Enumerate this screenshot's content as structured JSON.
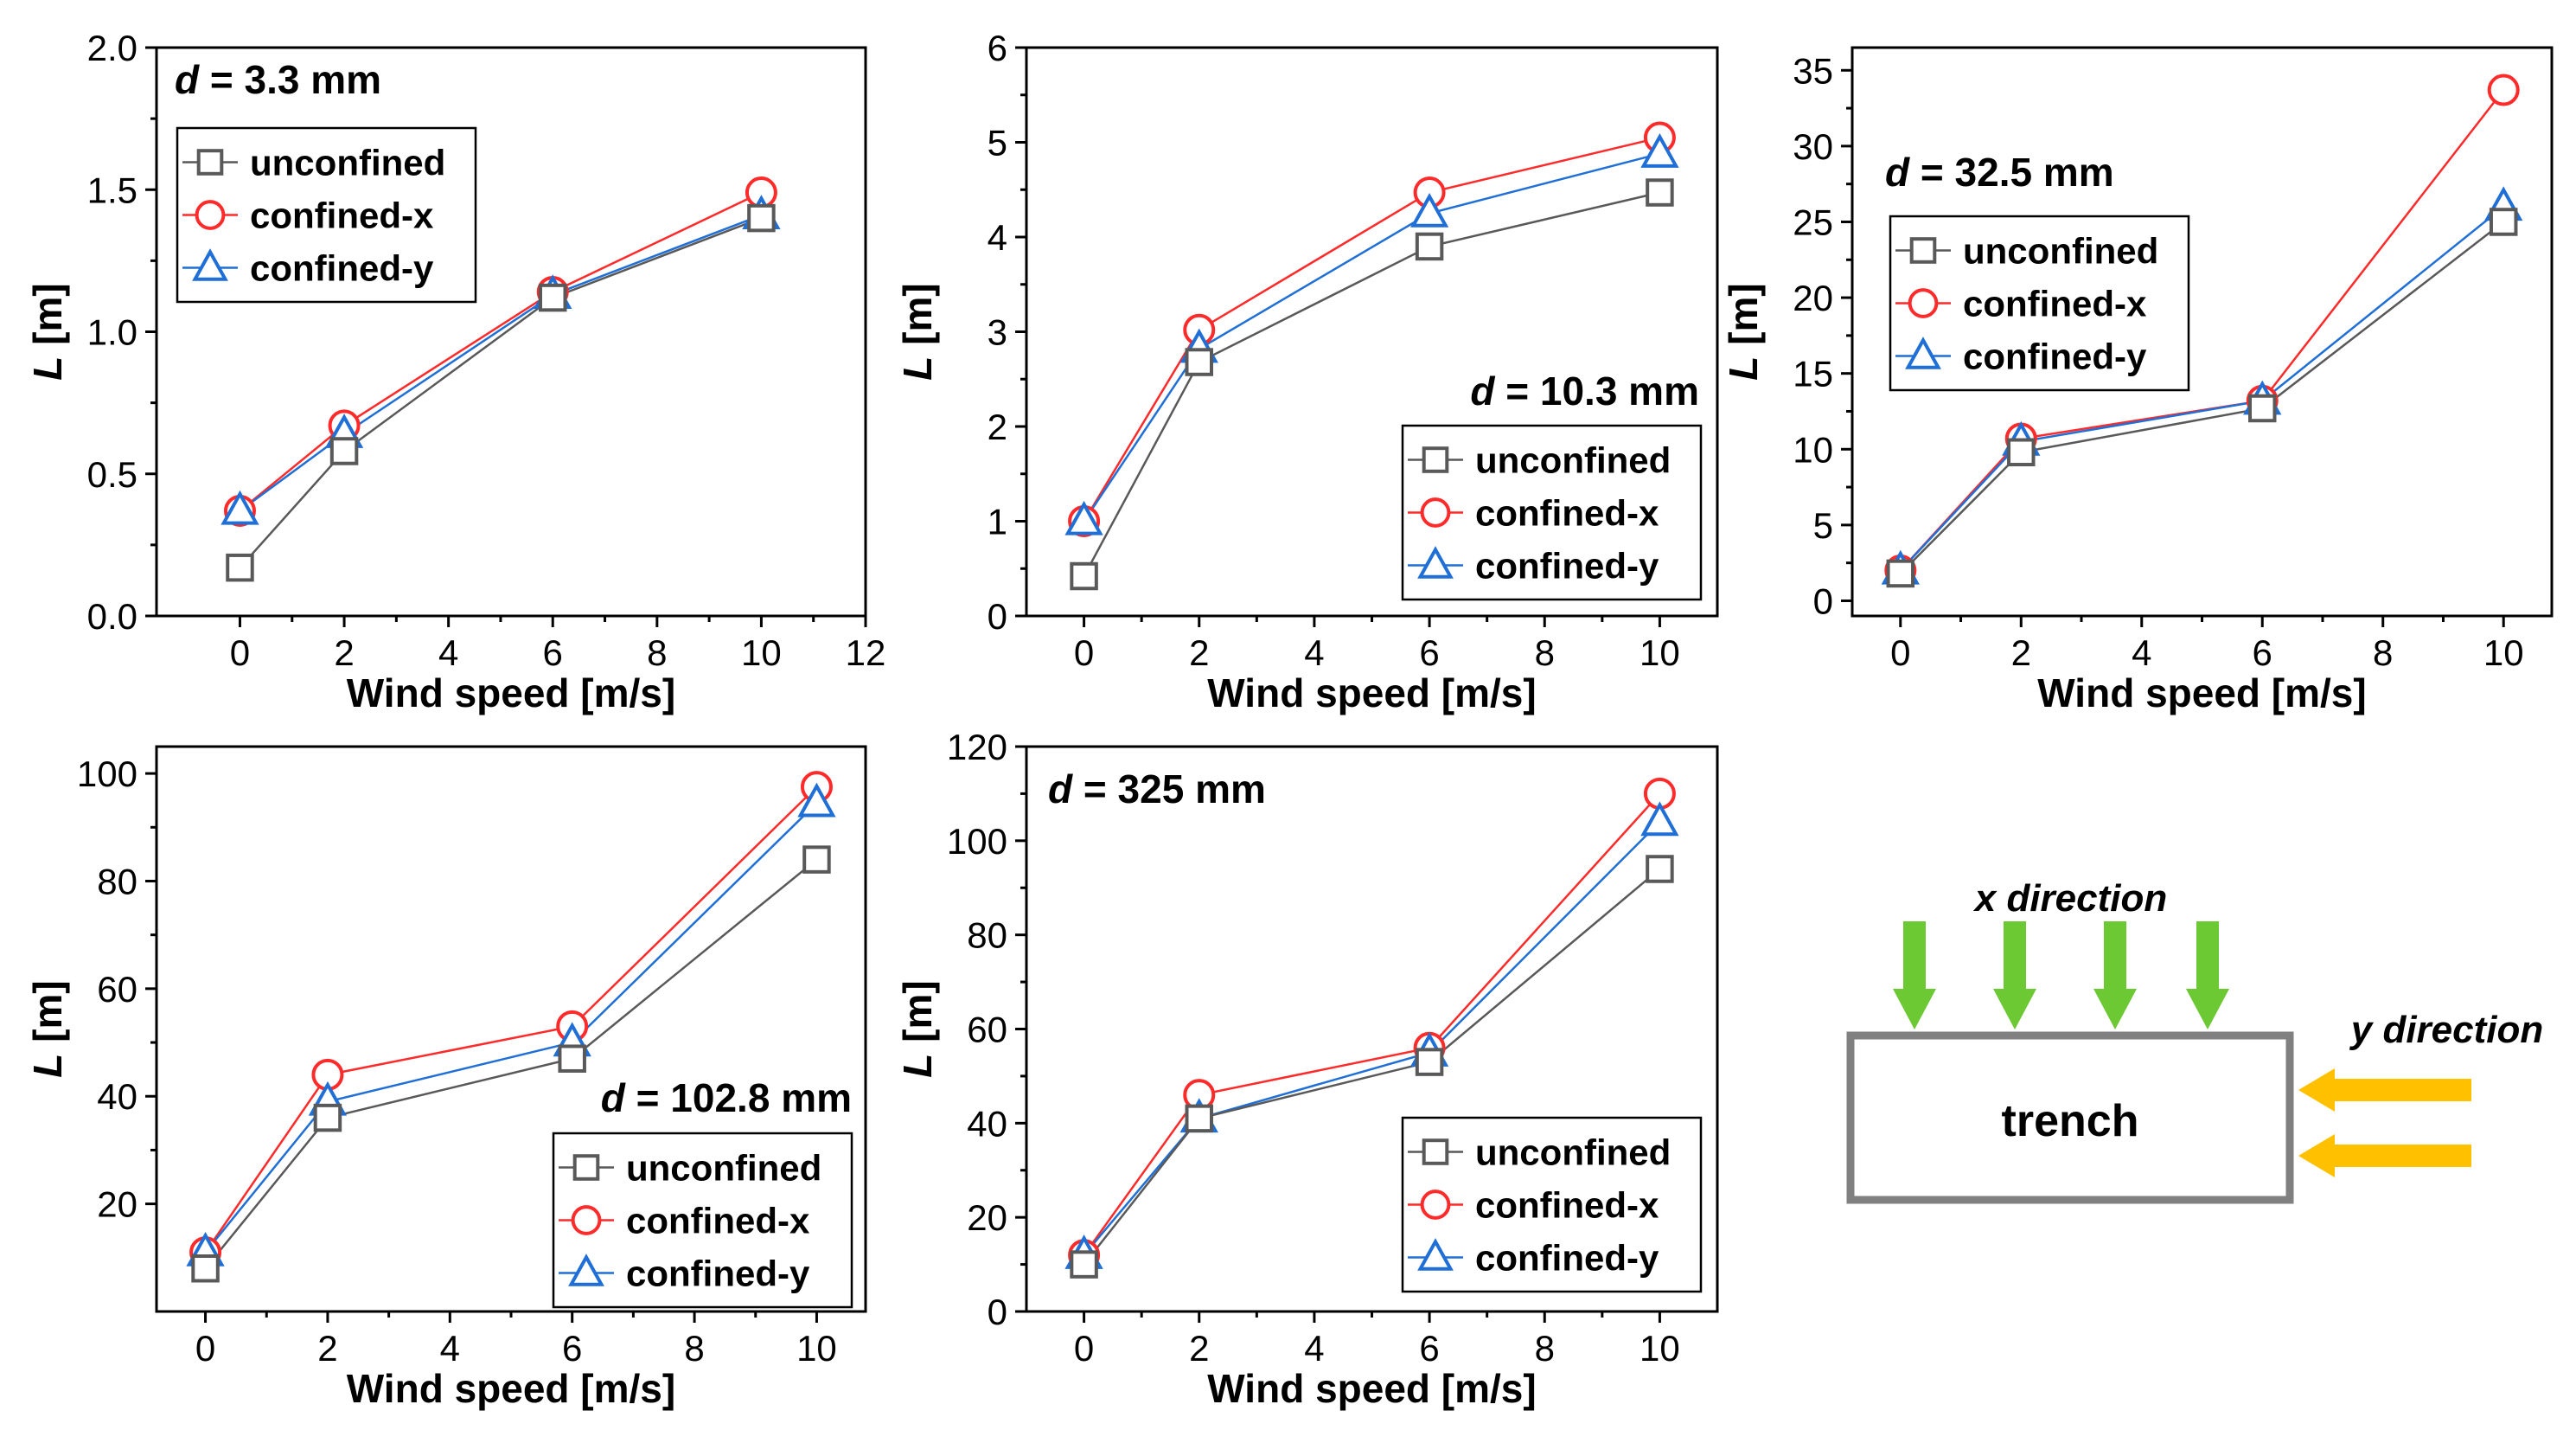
{
  "chart_data": [
    {
      "type": "line",
      "annotation_prefix": "d",
      "annotation_value": " = 3.3 mm",
      "xlabel": "Wind speed [m/s]",
      "ylabel_var": "L",
      "ylabel_unit": " [m]",
      "x": [
        0,
        2,
        6,
        10
      ],
      "xlim": [
        -1.6,
        12
      ],
      "ylim": [
        0,
        2.0
      ],
      "xticks": [
        0,
        2,
        4,
        6,
        8,
        10,
        12
      ],
      "xtick_labels": [
        "0",
        "2",
        "4",
        "6",
        "8",
        "10",
        "12"
      ],
      "yticks": [
        0,
        0.5,
        1.0,
        1.5,
        2.0
      ],
      "ytick_labels": [
        "0.0",
        "0.5",
        "1.0",
        "1.5",
        "2.0"
      ],
      "legend_position": "upper-left",
      "series": [
        {
          "name": "unconfined",
          "marker": "square",
          "color": "#595959",
          "values": [
            0.17,
            0.58,
            1.12,
            1.4
          ]
        },
        {
          "name": "confined-x",
          "marker": "circle",
          "color": "#FF2A2A",
          "values": [
            0.37,
            0.67,
            1.14,
            1.49
          ]
        },
        {
          "name": "confined-y",
          "marker": "triangle",
          "color": "#1F6FD6",
          "values": [
            0.37,
            0.64,
            1.13,
            1.41
          ]
        }
      ]
    },
    {
      "type": "line",
      "annotation_prefix": "d",
      "annotation_value": " = 10.3 mm",
      "xlabel": "Wind speed [m/s]",
      "ylabel_var": "L",
      "ylabel_unit": " [m]",
      "x": [
        0,
        2,
        6,
        10
      ],
      "xlim": [
        -1.0,
        11.0
      ],
      "ylim": [
        0,
        6
      ],
      "xticks": [
        0,
        2,
        4,
        6,
        8,
        10
      ],
      "xtick_labels": [
        "0",
        "2",
        "4",
        "6",
        "8",
        "10"
      ],
      "yticks": [
        0,
        1,
        2,
        3,
        4,
        5,
        6
      ],
      "ytick_labels": [
        "0",
        "1",
        "2",
        "3",
        "4",
        "5",
        "6"
      ],
      "legend_position": "lower-right",
      "series": [
        {
          "name": "unconfined",
          "marker": "square",
          "color": "#595959",
          "values": [
            0.42,
            2.68,
            3.9,
            4.47
          ]
        },
        {
          "name": "confined-x",
          "marker": "circle",
          "color": "#FF2A2A",
          "values": [
            1.0,
            3.02,
            4.47,
            5.05
          ]
        },
        {
          "name": "confined-y",
          "marker": "triangle",
          "color": "#1F6FD6",
          "values": [
            1.0,
            2.82,
            4.25,
            4.88
          ]
        }
      ]
    },
    {
      "type": "line",
      "annotation_prefix": "d",
      "annotation_value": " = 32.5 mm",
      "xlabel": "Wind speed [m/s]",
      "ylabel_var": "L",
      "ylabel_unit": " [m]",
      "x": [
        0,
        2,
        6,
        10
      ],
      "xlim": [
        -0.8,
        10.8
      ],
      "ylim": [
        -1,
        36.5
      ],
      "xticks": [
        0,
        2,
        4,
        6,
        8,
        10
      ],
      "xtick_labels": [
        "0",
        "2",
        "4",
        "6",
        "8",
        "10"
      ],
      "yticks": [
        0,
        5,
        10,
        15,
        20,
        25,
        30,
        35
      ],
      "ytick_labels": [
        "0",
        "5",
        "10",
        "15",
        "20",
        "25",
        "30",
        "35"
      ],
      "legend_position": "upper-left",
      "series": [
        {
          "name": "unconfined",
          "marker": "square",
          "color": "#595959",
          "values": [
            1.8,
            9.8,
            12.7,
            25.0
          ]
        },
        {
          "name": "confined-x",
          "marker": "circle",
          "color": "#FF2A2A",
          "values": [
            2.0,
            10.7,
            13.2,
            33.7
          ]
        },
        {
          "name": "confined-y",
          "marker": "triangle",
          "color": "#1F6FD6",
          "values": [
            2.0,
            10.5,
            13.2,
            26.0
          ]
        }
      ]
    },
    {
      "type": "line",
      "annotation_prefix": "d",
      "annotation_value": " = 102.8 mm",
      "xlabel": "Wind speed [m/s]",
      "ylabel_var": "L",
      "ylabel_unit": " [m]",
      "x": [
        0,
        2,
        6,
        10
      ],
      "xlim": [
        -0.8,
        10.8
      ],
      "ylim": [
        0,
        105
      ],
      "xticks": [
        0,
        2,
        4,
        6,
        8,
        10
      ],
      "xtick_labels": [
        "0",
        "2",
        "4",
        "6",
        "8",
        "10"
      ],
      "yticks": [
        20,
        40,
        60,
        80,
        100
      ],
      "ytick_labels": [
        "20",
        "40",
        "60",
        "80",
        "100"
      ],
      "legend_position": "lower-right",
      "series": [
        {
          "name": "unconfined",
          "marker": "square",
          "color": "#595959",
          "values": [
            8.0,
            36.0,
            47.0,
            84.0
          ]
        },
        {
          "name": "confined-x",
          "marker": "circle",
          "color": "#FF2A2A",
          "values": [
            11.0,
            44.0,
            53.0,
            97.5
          ]
        },
        {
          "name": "confined-y",
          "marker": "triangle",
          "color": "#1F6FD6",
          "values": [
            11.0,
            39.0,
            50.0,
            94.5
          ]
        }
      ]
    },
    {
      "type": "line",
      "annotation_prefix": "d",
      "annotation_value": " = 325 mm",
      "xlabel": "Wind speed [m/s]",
      "ylabel_var": "L",
      "ylabel_unit": " [m]",
      "x": [
        0,
        2,
        6,
        10
      ],
      "xlim": [
        -1.0,
        11.0
      ],
      "ylim": [
        0,
        120
      ],
      "xticks": [
        0,
        2,
        4,
        6,
        8,
        10
      ],
      "xtick_labels": [
        "0",
        "2",
        "4",
        "6",
        "8",
        "10"
      ],
      "yticks": [
        0,
        20,
        40,
        60,
        80,
        100,
        120
      ],
      "ytick_labels": [
        "0",
        "20",
        "40",
        "60",
        "80",
        "100",
        "120"
      ],
      "legend_position": "lower-right",
      "series": [
        {
          "name": "unconfined",
          "marker": "square",
          "color": "#595959",
          "values": [
            10.0,
            41.0,
            53.0,
            94.0
          ]
        },
        {
          "name": "confined-x",
          "marker": "circle",
          "color": "#FF2A2A",
          "values": [
            12.0,
            46.0,
            56.0,
            110.0
          ]
        },
        {
          "name": "confined-y",
          "marker": "triangle",
          "color": "#1F6FD6",
          "values": [
            12.0,
            41.0,
            55.0,
            104.0
          ]
        }
      ]
    }
  ],
  "diagram": {
    "x_direction_label": "x direction",
    "y_direction_label": "y direction",
    "trench_label": "trench",
    "arrow_color_x": "#6CC833",
    "arrow_color_y": "#FFC000",
    "box_color": "#808080"
  }
}
